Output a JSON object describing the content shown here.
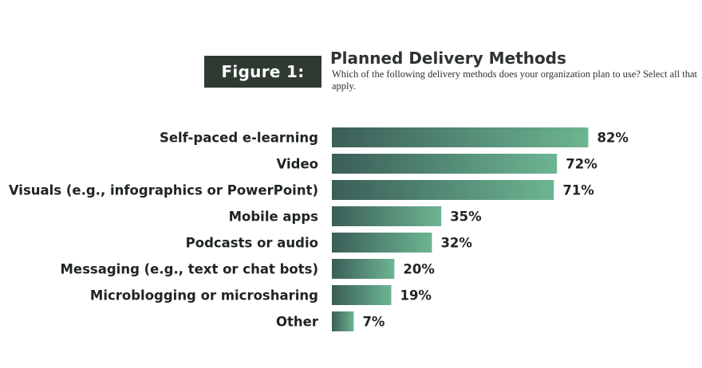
{
  "figure_label": "Figure 1:",
  "title": "Planned Delivery Methods",
  "subtitle": "Which of the following delivery methods does your organization plan to use? Select all that apply.",
  "colors": {
    "badge_bg": "#2f3a33",
    "bar_start": "#3b5e58",
    "bar_end": "#6cb592",
    "text": "#1f2521"
  },
  "chart_data": {
    "type": "bar",
    "orientation": "horizontal",
    "categories": [
      "Self-paced e-learning",
      "Video",
      "Visuals (e.g., infographics or PowerPoint)",
      "Mobile apps",
      "Podcasts or audio",
      "Messaging (e.g., text or chat bots)",
      "Microblogging or microsharing",
      "Other"
    ],
    "values": [
      82,
      72,
      71,
      35,
      32,
      20,
      19,
      7
    ],
    "value_labels": [
      "82%",
      "72%",
      "71%",
      "35%",
      "32%",
      "20%",
      "19%",
      "7%"
    ],
    "unit": "%",
    "xlim": [
      0,
      100
    ],
    "grid": false,
    "legend": "none"
  }
}
